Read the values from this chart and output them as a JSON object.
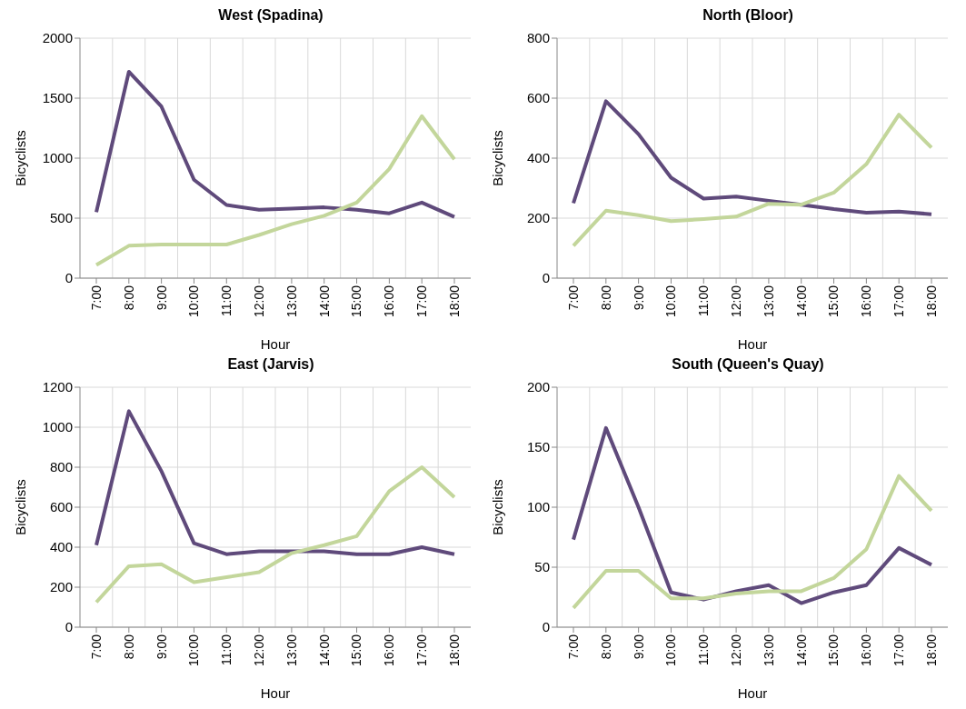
{
  "chart_data": [
    {
      "type": "line",
      "title": "West (Spadina)",
      "xlabel": "Hour",
      "ylabel": "Bicyclists",
      "categories": [
        "7:00",
        "8:00",
        "9:00",
        "10:00",
        "11:00",
        "12:00",
        "13:00",
        "14:00",
        "15:00",
        "16:00",
        "17:00",
        "18:00"
      ],
      "ylim": [
        0,
        2000
      ],
      "yticks": [
        0,
        500,
        1000,
        1500,
        2000
      ],
      "grid": true,
      "series": [
        {
          "color": "#5f4a7b",
          "values": [
            550,
            1720,
            1430,
            820,
            610,
            570,
            580,
            590,
            570,
            540,
            630,
            510
          ]
        },
        {
          "color": "#c3d69b",
          "values": [
            110,
            270,
            280,
            280,
            280,
            360,
            450,
            520,
            630,
            910,
            1350,
            990
          ]
        }
      ]
    },
    {
      "type": "line",
      "title": "North (Bloor)",
      "xlabel": "Hour",
      "ylabel": "Bicyclists",
      "categories": [
        "7:00",
        "8:00",
        "9:00",
        "10:00",
        "11:00",
        "12:00",
        "13:00",
        "14:00",
        "15:00",
        "16:00",
        "17:00",
        "18:00"
      ],
      "ylim": [
        0,
        800
      ],
      "yticks": [
        0,
        200,
        400,
        600,
        800
      ],
      "grid": true,
      "series": [
        {
          "color": "#5f4a7b",
          "values": [
            250,
            590,
            480,
            335,
            265,
            272,
            258,
            245,
            230,
            218,
            222,
            213
          ]
        },
        {
          "color": "#c3d69b",
          "values": [
            108,
            225,
            210,
            190,
            197,
            205,
            248,
            245,
            285,
            380,
            545,
            435
          ]
        }
      ]
    },
    {
      "type": "line",
      "title": "East (Jarvis)",
      "xlabel": "Hour",
      "ylabel": "Bicyclists",
      "categories": [
        "7:00",
        "8:00",
        "9:00",
        "10:00",
        "11:00",
        "12:00",
        "13:00",
        "14:00",
        "15:00",
        "16:00",
        "17:00",
        "18:00"
      ],
      "ylim": [
        0,
        1200
      ],
      "yticks": [
        0,
        200,
        400,
        600,
        800,
        1000,
        1200
      ],
      "grid": true,
      "series": [
        {
          "color": "#5f4a7b",
          "values": [
            410,
            1080,
            780,
            420,
            365,
            380,
            380,
            380,
            365,
            365,
            400,
            365
          ]
        },
        {
          "color": "#c3d69b",
          "values": [
            125,
            305,
            315,
            225,
            250,
            275,
            370,
            410,
            455,
            680,
            800,
            650
          ]
        }
      ]
    },
    {
      "type": "line",
      "title": "South (Queen's Quay)",
      "xlabel": "Hour",
      "ylabel": "Bicyclists",
      "categories": [
        "7:00",
        "8:00",
        "9:00",
        "10:00",
        "11:00",
        "12:00",
        "13:00",
        "14:00",
        "15:00",
        "16:00",
        "17:00",
        "18:00"
      ],
      "ylim": [
        0,
        200
      ],
      "yticks": [
        0,
        50,
        100,
        150,
        200
      ],
      "grid": true,
      "series": [
        {
          "color": "#5f4a7b",
          "values": [
            73,
            166,
            100,
            29,
            23,
            30,
            35,
            20,
            29,
            35,
            66,
            52
          ]
        },
        {
          "color": "#c3d69b",
          "values": [
            16,
            47,
            47,
            24,
            24,
            28,
            30,
            30,
            41,
            65,
            126,
            97
          ]
        }
      ]
    }
  ]
}
